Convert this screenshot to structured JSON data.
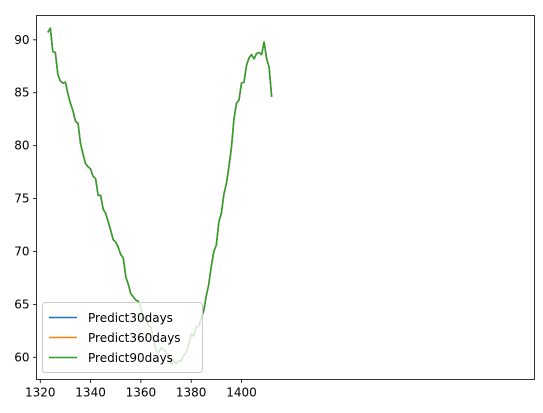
{
  "chart_data": {
    "type": "line",
    "title": "",
    "xlabel": "",
    "ylabel": "",
    "xlim": [
      1318.5,
      1516.5
    ],
    "ylim": [
      57.9,
      92.3
    ],
    "x_ticks": [
      1320,
      1340,
      1360,
      1380,
      1400
    ],
    "y_ticks": [
      60,
      65,
      70,
      75,
      80,
      85,
      90
    ],
    "grid": false,
    "legend_position": "lower-left",
    "series": [
      {
        "name": "Predict30days",
        "color": "#1f77b4",
        "x": [
          1323,
          1324,
          1325,
          1326,
          1327,
          1328,
          1329,
          1330,
          1331,
          1332,
          1333,
          1334,
          1335,
          1336,
          1337,
          1338,
          1339,
          1340,
          1341,
          1342,
          1343,
          1344,
          1345,
          1346,
          1347,
          1348,
          1349,
          1350,
          1351,
          1352,
          1353,
          1354,
          1355,
          1356,
          1357,
          1358,
          1359,
          1360,
          1361,
          1362,
          1363,
          1364,
          1365,
          1366,
          1367,
          1368,
          1369,
          1370,
          1371,
          1372,
          1373,
          1374,
          1375,
          1376,
          1377,
          1378,
          1379,
          1380,
          1381,
          1382,
          1383,
          1384,
          1385,
          1386,
          1387,
          1388,
          1389,
          1390,
          1391,
          1392,
          1393,
          1394,
          1395,
          1396,
          1397,
          1398,
          1399,
          1400,
          1401,
          1402,
          1403,
          1404,
          1405,
          1406,
          1407,
          1408,
          1409,
          1410,
          1411,
          1412
        ],
        "y": [
          90.7,
          91.1,
          88.9,
          88.8,
          86.7,
          86.1,
          85.9,
          86.0,
          84.9,
          84.0,
          83.3,
          82.3,
          82.1,
          80.2,
          79.2,
          78.3,
          78.0,
          77.8,
          77.1,
          76.9,
          75.3,
          75.3,
          74.0,
          73.6,
          72.8,
          72.0,
          71.1,
          70.9,
          70.4,
          69.7,
          69.4,
          67.6,
          66.9,
          66.0,
          65.7,
          65.4,
          65.3,
          64.6,
          63.6,
          63.9,
          63.0,
          62.9,
          61.6,
          60.7,
          60.4,
          60.9,
          60.8,
          60.4,
          60.2,
          59.3,
          59.7,
          59.4,
          59.7,
          59.6,
          60.2,
          60.4,
          61.2,
          62.2,
          62.0,
          62.9,
          62.9,
          63.7,
          64.4,
          65.8,
          66.9,
          68.6,
          70.0,
          70.6,
          72.8,
          73.6,
          75.4,
          76.4,
          78.0,
          79.8,
          82.5,
          84.0,
          84.3,
          85.9,
          86.0,
          87.6,
          88.3,
          88.6,
          88.2,
          88.7,
          88.8,
          88.6,
          89.8,
          88.2,
          87.4,
          84.6
        ]
      },
      {
        "name": "Predict360days",
        "color": "#ff7f0e",
        "x": [
          1323,
          1324,
          1325,
          1326,
          1327,
          1328,
          1329,
          1330,
          1331,
          1332,
          1333,
          1334,
          1335,
          1336,
          1337,
          1338,
          1339,
          1340,
          1341,
          1342,
          1343,
          1344,
          1345,
          1346,
          1347,
          1348,
          1349,
          1350,
          1351,
          1352,
          1353,
          1354,
          1355,
          1356,
          1357,
          1358,
          1359,
          1360,
          1361,
          1362,
          1363,
          1364,
          1365,
          1366,
          1367,
          1368,
          1369,
          1370,
          1371,
          1372,
          1373,
          1374,
          1375,
          1376,
          1377,
          1378,
          1379,
          1380,
          1381,
          1382,
          1383,
          1384,
          1385,
          1386,
          1387,
          1388,
          1389,
          1390,
          1391,
          1392,
          1393,
          1394,
          1395,
          1396,
          1397,
          1398,
          1399,
          1400,
          1401,
          1402,
          1403,
          1404,
          1405,
          1406,
          1407,
          1408,
          1409,
          1410,
          1411,
          1412
        ],
        "y": [
          90.7,
          91.1,
          88.9,
          88.8,
          86.7,
          86.1,
          85.9,
          86.0,
          84.9,
          84.0,
          83.3,
          82.3,
          82.1,
          80.2,
          79.2,
          78.3,
          78.0,
          77.8,
          77.1,
          76.9,
          75.3,
          75.3,
          74.0,
          73.6,
          72.8,
          72.0,
          71.1,
          70.9,
          70.4,
          69.7,
          69.4,
          67.6,
          66.9,
          66.0,
          65.7,
          65.4,
          65.3,
          64.6,
          63.6,
          63.9,
          63.0,
          62.9,
          61.6,
          60.7,
          60.4,
          60.9,
          60.8,
          60.4,
          60.2,
          59.3,
          59.7,
          59.4,
          59.7,
          59.6,
          60.2,
          60.4,
          61.2,
          62.2,
          62.0,
          62.9,
          62.9,
          63.7,
          64.4,
          65.8,
          66.9,
          68.6,
          70.0,
          70.6,
          72.8,
          73.6,
          75.4,
          76.4,
          78.0,
          79.8,
          82.5,
          84.0,
          84.3,
          85.9,
          86.0,
          87.6,
          88.3,
          88.6,
          88.2,
          88.7,
          88.8,
          88.6,
          89.8,
          88.2,
          87.4,
          84.6
        ]
      },
      {
        "name": "Predict90days",
        "color": "#2ca02c",
        "x": [
          1323,
          1324,
          1325,
          1326,
          1327,
          1328,
          1329,
          1330,
          1331,
          1332,
          1333,
          1334,
          1335,
          1336,
          1337,
          1338,
          1339,
          1340,
          1341,
          1342,
          1343,
          1344,
          1345,
          1346,
          1347,
          1348,
          1349,
          1350,
          1351,
          1352,
          1353,
          1354,
          1355,
          1356,
          1357,
          1358,
          1359,
          1360,
          1361,
          1362,
          1363,
          1364,
          1365,
          1366,
          1367,
          1368,
          1369,
          1370,
          1371,
          1372,
          1373,
          1374,
          1375,
          1376,
          1377,
          1378,
          1379,
          1380,
          1381,
          1382,
          1383,
          1384,
          1385,
          1386,
          1387,
          1388,
          1389,
          1390,
          1391,
          1392,
          1393,
          1394,
          1395,
          1396,
          1397,
          1398,
          1399,
          1400,
          1401,
          1402,
          1403,
          1404,
          1405,
          1406,
          1407,
          1408,
          1409,
          1410,
          1411,
          1412
        ],
        "y": [
          90.7,
          91.1,
          88.9,
          88.8,
          86.7,
          86.1,
          85.9,
          86.0,
          84.9,
          84.0,
          83.3,
          82.3,
          82.1,
          80.2,
          79.2,
          78.3,
          78.0,
          77.8,
          77.1,
          76.9,
          75.3,
          75.3,
          74.0,
          73.6,
          72.8,
          72.0,
          71.1,
          70.9,
          70.4,
          69.7,
          69.4,
          67.6,
          66.9,
          66.0,
          65.7,
          65.4,
          65.3,
          64.6,
          63.6,
          63.9,
          63.0,
          62.9,
          61.6,
          60.7,
          60.4,
          60.9,
          60.8,
          60.4,
          60.2,
          59.3,
          59.7,
          59.4,
          59.7,
          59.6,
          60.2,
          60.4,
          61.2,
          62.2,
          62.0,
          62.9,
          62.9,
          63.7,
          64.4,
          65.8,
          66.9,
          68.6,
          70.0,
          70.6,
          72.8,
          73.6,
          75.4,
          76.4,
          78.0,
          79.8,
          82.5,
          84.0,
          84.3,
          85.9,
          86.0,
          87.6,
          88.3,
          88.6,
          88.2,
          88.7,
          88.8,
          88.6,
          89.8,
          88.2,
          87.4,
          84.6
        ]
      }
    ]
  }
}
